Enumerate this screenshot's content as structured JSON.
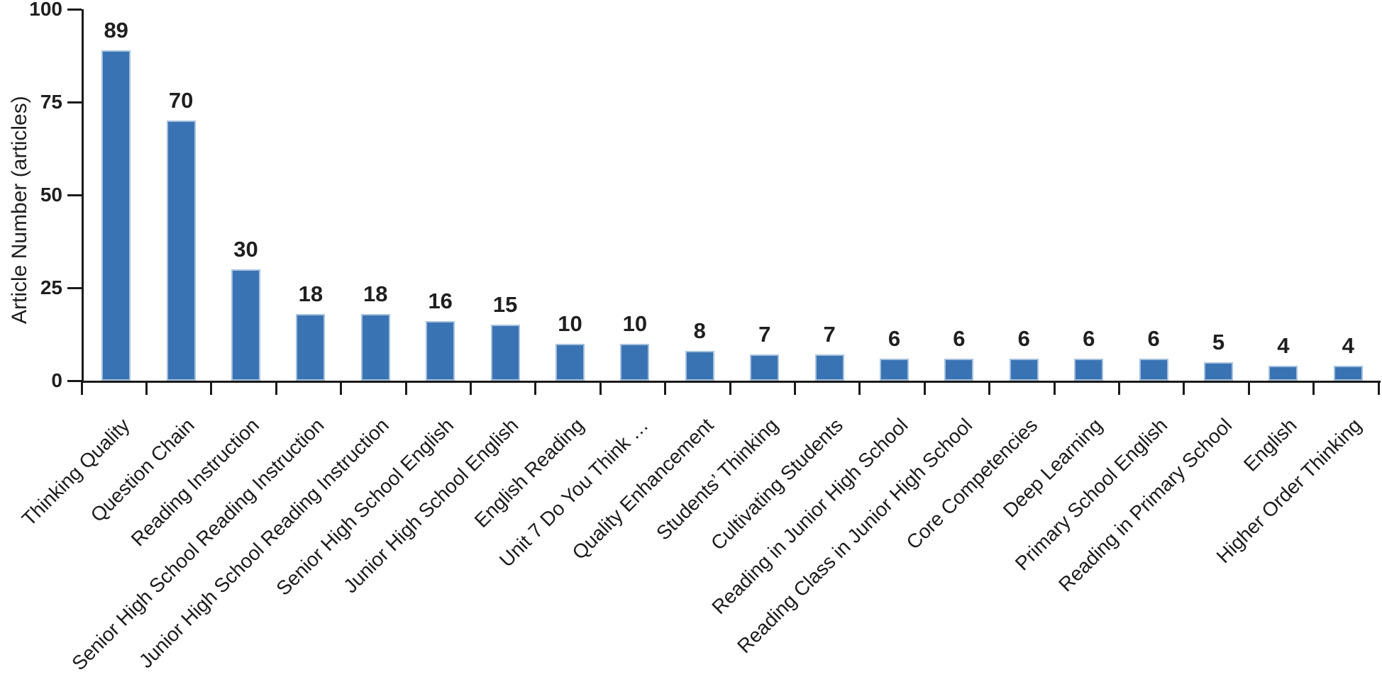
{
  "chart_data": {
    "type": "bar",
    "title": "",
    "xlabel": "",
    "ylabel": "Article Number (articles)",
    "categories": [
      "Thinking Quality",
      "Question Chain",
      "Reading Instruction",
      "Senior High School Reading Instruction",
      "Junior High School Reading Instruction",
      "Senior High School English",
      "Junior High School English",
      "English Reading",
      "Unit 7 Do You Think …",
      "Quality Enhancement",
      "Students’ Thinking",
      "Cultivating Students",
      "Reading in Junior High School",
      "Reading Class in Junior High School",
      "Core Competencies",
      "Deep Learning",
      "Primary School English",
      "Reading in Primary School",
      "English",
      "Higher Order Thinking"
    ],
    "values": [
      89,
      70,
      30,
      18,
      18,
      16,
      15,
      10,
      10,
      8,
      7,
      7,
      6,
      6,
      6,
      6,
      6,
      5,
      4,
      4
    ],
    "ylim": [
      0,
      100
    ],
    "yticks": [
      0,
      25,
      50,
      75,
      100
    ],
    "grid": "off",
    "legend": "none",
    "bar_color": "#3a73b3",
    "bar_border_color": "#a6c1dd",
    "axis_color": "#1a1a1a",
    "label_color": "#1f1f1f",
    "x_label_rotation_deg": 45
  }
}
